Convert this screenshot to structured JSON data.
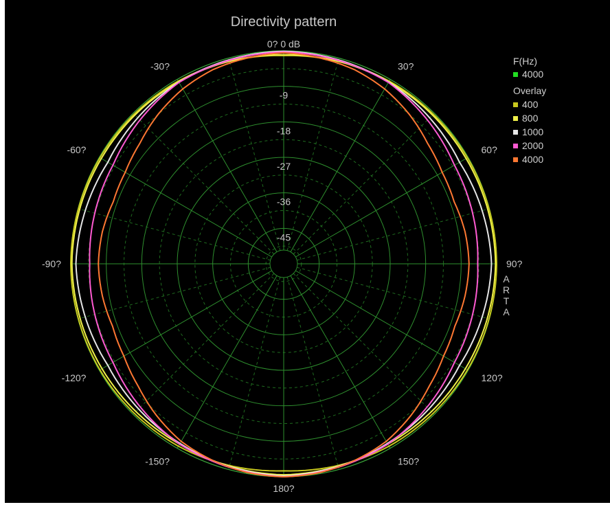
{
  "chart_data": {
    "type": "polar-line",
    "title": "Directivity pattern",
    "radial_unit": "dB",
    "radial_range": [
      -54,
      0
    ],
    "ring_labels": [
      "0? 0 dB",
      "-9",
      "-18",
      "-27",
      "-36",
      "-45"
    ],
    "angle_labels": [
      {
        "angle": -30,
        "text": "-30?"
      },
      {
        "angle": 30,
        "text": "30?"
      },
      {
        "angle": -60,
        "text": "-60?"
      },
      {
        "angle": 60,
        "text": "60?"
      },
      {
        "angle": -90,
        "text": "-90?"
      },
      {
        "angle": 90,
        "text": "90?"
      },
      {
        "angle": -120,
        "text": "-120?"
      },
      {
        "angle": 120,
        "text": "120?"
      },
      {
        "angle": -150,
        "text": "-150?"
      },
      {
        "angle": 150,
        "text": "150?"
      },
      {
        "angle": 180,
        "text": "180?"
      }
    ],
    "watermark": [
      "A",
      "R",
      "T",
      "A"
    ],
    "legend": {
      "title": "F(Hz)",
      "current": {
        "name": "4000",
        "color": "#22dd22"
      },
      "overlay_title": "Overlay",
      "overlay": [
        {
          "name": "400",
          "color": "#c8c81e"
        },
        {
          "name": "800",
          "color": "#f0f04a"
        },
        {
          "name": "1000",
          "color": "#e6e6e6"
        },
        {
          "name": "2000",
          "color": "#ff5ad2"
        },
        {
          "name": "4000",
          "color": "#ff7832"
        }
      ]
    },
    "series": [
      {
        "name": "400",
        "color": "#c8c81e",
        "angles": [
          0,
          30,
          60,
          90,
          120,
          150,
          180
        ],
        "values": [
          -1.2,
          -0.5,
          -0.2,
          0,
          -0.2,
          -0.6,
          -1.5
        ]
      },
      {
        "name": "800",
        "color": "#f0f04a",
        "angles": [
          0,
          30,
          60,
          90,
          120,
          150,
          180
        ],
        "values": [
          -1.0,
          -0.7,
          -0.6,
          -0.3,
          -0.8,
          -1.2,
          -0.5
        ]
      },
      {
        "name": "1000",
        "color": "#e6e6e6",
        "angles": [
          0,
          30,
          60,
          90,
          120,
          150,
          180
        ],
        "values": [
          -0.1,
          -0.8,
          -2.5,
          -1.3,
          -2.5,
          -1.4,
          -0.2
        ]
      },
      {
        "name": "2000",
        "color": "#ff5ad2",
        "angles": [
          0,
          30,
          60,
          90,
          120,
          150,
          180
        ],
        "values": [
          -0.3,
          -0.9,
          -4.0,
          -4.8,
          -4.0,
          -1.2,
          0
        ]
      },
      {
        "name": "4000",
        "color": "#ff7832",
        "angles": [
          0,
          10,
          20,
          30,
          40,
          50,
          60,
          70,
          80,
          90,
          100,
          110,
          120,
          130,
          140,
          150,
          160,
          170,
          180
        ],
        "values": [
          -0.5,
          -1.0,
          -1.6,
          -2.8,
          -4.5,
          -6.4,
          -7.6,
          -8.0,
          -7.3,
          -7.0,
          -7.3,
          -7.8,
          -7.2,
          -5.8,
          -3.8,
          -2.0,
          -1.0,
          -0.3,
          0
        ]
      }
    ]
  }
}
